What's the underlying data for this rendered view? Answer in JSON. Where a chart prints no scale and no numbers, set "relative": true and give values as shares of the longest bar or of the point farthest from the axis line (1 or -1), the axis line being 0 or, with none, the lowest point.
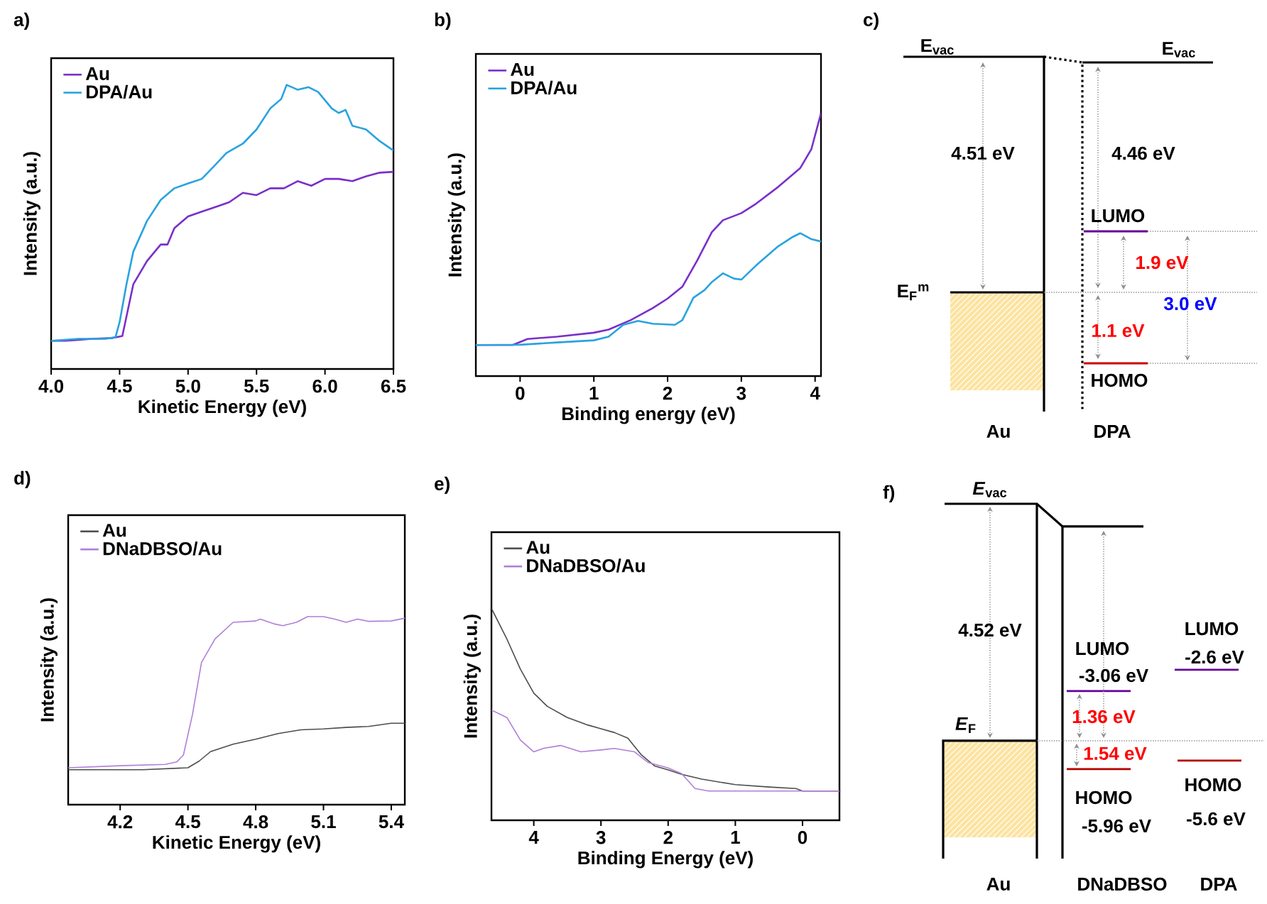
{
  "chart_data": [
    {
      "type": "line",
      "title": "a)",
      "xlabel": "Kinetic Energy (eV)",
      "ylabel": "Intensity (a.u.)",
      "relative": true,
      "xlim": [
        4.0,
        6.5
      ],
      "xticks": [
        {
          "value": 4,
          "label": "4.0"
        },
        {
          "value": 4.5,
          "label": "4.5"
        },
        {
          "value": 5,
          "label": "5.0"
        },
        {
          "value": 5.5,
          "label": "5.5"
        },
        {
          "value": 6,
          "label": "6.0"
        },
        {
          "value": 6.5,
          "label": "6.5"
        }
      ],
      "legend": "top left",
      "series": [
        {
          "name": "Au",
          "color": "#7b2fc9",
          "x": [
            4.0,
            4.1,
            4.3,
            4.45,
            4.52,
            4.6,
            4.7,
            4.8,
            4.85,
            4.9,
            5.0,
            5.1,
            5.2,
            5.3,
            5.4,
            5.5,
            5.6,
            5.7,
            5.8,
            5.9,
            6.0,
            6.1,
            6.2,
            6.3,
            6.4,
            6.5
          ],
          "values": [
            0.099,
            0.099,
            0.106,
            0.109,
            0.116,
            0.298,
            0.38,
            0.438,
            0.438,
            0.496,
            0.537,
            0.554,
            0.57,
            0.587,
            0.62,
            0.612,
            0.636,
            0.636,
            0.661,
            0.645,
            0.669,
            0.669,
            0.661,
            0.678,
            0.691,
            0.694
          ]
        },
        {
          "name": "DPA/Au",
          "color": "#29a3e0",
          "x": [
            4.0,
            4.2,
            4.4,
            4.47,
            4.5,
            4.55,
            4.6,
            4.7,
            4.8,
            4.9,
            5.0,
            5.1,
            5.2,
            5.28,
            5.4,
            5.5,
            5.6,
            5.68,
            5.72,
            5.8,
            5.88,
            5.95,
            6.05,
            6.1,
            6.15,
            6.2,
            6.3,
            6.4,
            6.5
          ],
          "values": [
            0.099,
            0.106,
            0.106,
            0.112,
            0.165,
            0.298,
            0.413,
            0.521,
            0.595,
            0.636,
            0.653,
            0.669,
            0.719,
            0.76,
            0.793,
            0.843,
            0.917,
            0.95,
            1,
            0.983,
            0.992,
            0.975,
            0.917,
            0.901,
            0.912,
            0.856,
            0.843,
            0.802,
            0.769
          ]
        }
      ]
    },
    {
      "type": "line",
      "title": "b)",
      "xlabel": "Binding energy (eV)",
      "ylabel": "Intensity (a.u.)",
      "relative": true,
      "xlim": [
        -0.6,
        4.08
      ],
      "xticks": [
        0,
        1,
        2,
        3,
        4
      ],
      "legend": "top left",
      "series": [
        {
          "name": "Au",
          "color": "#7b2fc9",
          "x": [
            -0.6,
            -0.1,
            0.1,
            0.5,
            1.0,
            1.2,
            1.5,
            1.8,
            2.0,
            2.2,
            2.4,
            2.6,
            2.75,
            3.0,
            3.2,
            3.5,
            3.8,
            3.95,
            4.08
          ],
          "values": [
            0.118,
            0.118,
            0.141,
            0.15,
            0.165,
            0.177,
            0.213,
            0.259,
            0.295,
            0.34,
            0.439,
            0.548,
            0.593,
            0.62,
            0.656,
            0.72,
            0.792,
            0.864,
            1
          ]
        },
        {
          "name": "DPA/Au",
          "color": "#29a3e0",
          "x": [
            -0.6,
            0,
            0.5,
            1.0,
            1.2,
            1.4,
            1.6,
            1.8,
            2.1,
            2.2,
            2.35,
            2.5,
            2.6,
            2.75,
            2.9,
            3.0,
            3.2,
            3.5,
            3.7,
            3.8,
            3.95,
            4.08
          ],
          "values": [
            0.118,
            0.119,
            0.128,
            0.136,
            0.15,
            0.195,
            0.21,
            0.199,
            0.195,
            0.213,
            0.298,
            0.327,
            0.358,
            0.391,
            0.371,
            0.367,
            0.421,
            0.494,
            0.53,
            0.544,
            0.521,
            0.512
          ]
        }
      ]
    },
    {
      "type": "other",
      "title": "c)",
      "annotations": [
        "E$_{vac}$",
        "E$_{vac}$",
        "4.51 eV",
        "4.46 eV",
        "LUMO",
        "1.9 eV",
        "E$_{F}$$^{m}$",
        "3.0 eV",
        "1.1 eV",
        "HOMO",
        "Au",
        "DPA"
      ]
    },
    {
      "type": "line",
      "title": "d)",
      "xlabel": "Kinetic Energy (eV)",
      "ylabel": "Intensity (a.u.)",
      "relative": true,
      "xlim": [
        3.97,
        5.46
      ],
      "xticks": [
        4.2,
        4.5,
        4.8,
        5.1,
        5.4
      ],
      "legend": "top left",
      "series": [
        {
          "name": "Au",
          "color": "#4d4d4d",
          "x": [
            3.97,
            4.3,
            4.5,
            4.55,
            4.6,
            4.7,
            4.8,
            4.9,
            5.0,
            5.1,
            5.2,
            5.3,
            5.4,
            5.46
          ],
          "values": [
            0.186,
            0.186,
            0.196,
            0.232,
            0.282,
            0.322,
            0.348,
            0.378,
            0.398,
            0.403,
            0.411,
            0.416,
            0.433,
            0.433
          ]
        },
        {
          "name": "DNaDBSO/Au",
          "color": "#b07fd6",
          "x": [
            3.97,
            4.2,
            4.4,
            4.45,
            4.48,
            4.52,
            4.56,
            4.62,
            4.7,
            4.8,
            4.82,
            4.88,
            4.92,
            4.98,
            5.03,
            5.1,
            5.15,
            5.2,
            5.25,
            5.3,
            5.4,
            5.46
          ],
          "values": [
            0.196,
            0.207,
            0.214,
            0.227,
            0.264,
            0.479,
            0.756,
            0.882,
            0.97,
            0.977,
            0.987,
            0.962,
            0.952,
            0.97,
            1,
            1,
            0.987,
            0.97,
            0.987,
            0.975,
            0.977,
            0.992
          ]
        }
      ]
    },
    {
      "type": "line",
      "title": "e)",
      "xlabel": "Binding Energy (eV)",
      "ylabel": "Intensity (a.u.)",
      "relative": true,
      "xlim": [
        4.63,
        -0.55
      ],
      "xticks": [
        4,
        3,
        2,
        1,
        0
      ],
      "legend": "top left",
      "series": [
        {
          "name": "Au",
          "color": "#4d4d4d",
          "x": [
            4.63,
            4.4,
            4.2,
            4.0,
            3.8,
            3.5,
            3.2,
            3.0,
            2.8,
            2.6,
            2.4,
            2.2,
            2.0,
            1.8,
            1.5,
            1.0,
            0.5,
            0.1,
            0,
            -0.55
          ],
          "values": [
            1,
            0.855,
            0.714,
            0.6,
            0.538,
            0.485,
            0.45,
            0.432,
            0.414,
            0.388,
            0.309,
            0.256,
            0.238,
            0.217,
            0.194,
            0.168,
            0.157,
            0.15,
            0.138,
            0.138
          ]
        },
        {
          "name": "DNaDBSO/Au",
          "color": "#b07fd6",
          "x": [
            4.63,
            4.4,
            4.2,
            4.0,
            3.85,
            3.6,
            3.3,
            3.0,
            2.8,
            2.5,
            2.3,
            2.0,
            1.8,
            1.6,
            1.4,
            0,
            -0.55
          ],
          "values": [
            0.52,
            0.485,
            0.379,
            0.323,
            0.34,
            0.353,
            0.323,
            0.332,
            0.339,
            0.323,
            0.273,
            0.247,
            0.22,
            0.15,
            0.138,
            0.138,
            0.138
          ]
        }
      ]
    },
    {
      "type": "other",
      "title": "f)",
      "annotations": [
        "*E*$_{vac}$",
        "4.52 eV",
        "*E*$_{F}$",
        "LUMO",
        "-3.06 eV",
        "1.36 eV",
        "1.54 eV",
        "HOMO",
        "-5.96 eV",
        "LUMO",
        "-2.6 eV",
        "HOMO",
        "-5.6 eV",
        "Au",
        "DNaDBSO",
        "DPA"
      ]
    }
  ]
}
